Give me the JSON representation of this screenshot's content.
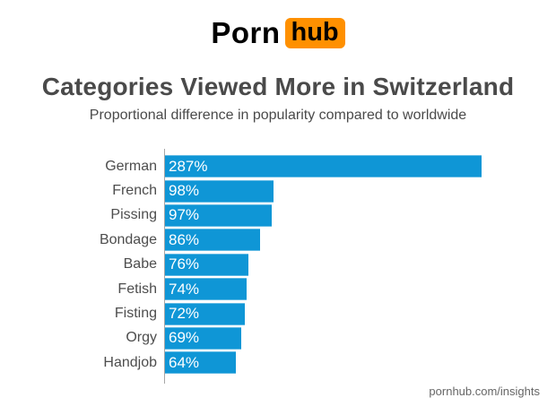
{
  "logo": {
    "porn": "Porn",
    "hub": "hub",
    "badge_color": "#ff9000"
  },
  "title": "Categories Viewed More in Switzerland",
  "subtitle": "Proportional difference in popularity compared to worldwide",
  "footer": "pornhub.com/insights",
  "chart_data": {
    "type": "bar",
    "orientation": "horizontal",
    "title": "Categories Viewed More in Switzerland",
    "subtitle": "Proportional difference in popularity compared to worldwide",
    "categories": [
      "German",
      "French",
      "Pissing",
      "Bondage",
      "Babe",
      "Fetish",
      "Fisting",
      "Orgy",
      "Handjob"
    ],
    "values": [
      287,
      98,
      97,
      86,
      76,
      74,
      72,
      69,
      64
    ],
    "value_labels": [
      "287%",
      "98%",
      "97%",
      "86%",
      "76%",
      "74%",
      "72%",
      "69%",
      "64%"
    ],
    "unit": "%",
    "xlim": [
      0,
      290
    ],
    "grid": false,
    "legend": false,
    "bar_color": "#0f96d6",
    "axis_color": "#a6a6a6",
    "label_color": "#4d4d4d",
    "value_text_color": "#ffffff"
  }
}
